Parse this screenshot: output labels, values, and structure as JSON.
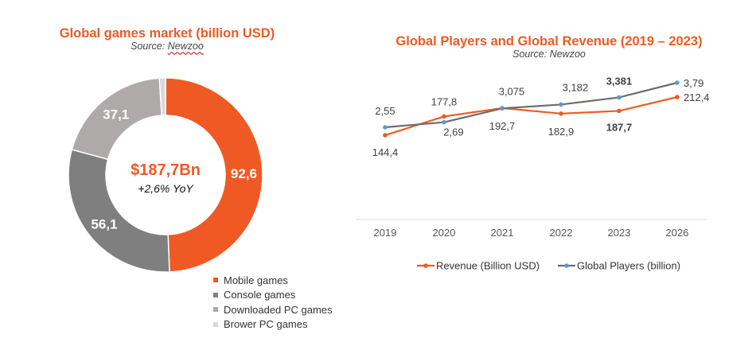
{
  "left": {
    "title": "Global games market (billion USD)",
    "subtitle_prefix": "Source: ",
    "subtitle_source": "Newzoo"
  },
  "right": {
    "title": "Global Players and Global Revenue (2019 – 2023)",
    "subtitle": "Source: Newzoo"
  },
  "chart_data": [
    {
      "type": "pie",
      "variant": "donut",
      "title": "Global games market (billion USD)",
      "subtitle": "Source: Newzoo",
      "center_value": "$187,7Bn",
      "center_note": "+2,6% YoY",
      "legend_position": "bottom-right",
      "slices": [
        {
          "name": "Mobile games",
          "value": 92.6,
          "label": "92,6",
          "color": "#ef5a24"
        },
        {
          "name": "Console games",
          "value": 56.1,
          "label": "56,1",
          "color": "#7f7f7f"
        },
        {
          "name": "Downloaded PC games",
          "value": 37.1,
          "label": "37,1",
          "color": "#aeaaaa"
        },
        {
          "name": "Brower PC games",
          "value": 1.9,
          "label": "",
          "color": "#d9d9d9"
        }
      ]
    },
    {
      "type": "line",
      "title": "Global Players and Global Revenue (2019 – 2023)",
      "subtitle": "Source: Newzoo",
      "categories": [
        "2019",
        "2020",
        "2021",
        "2022",
        "2023",
        "2026"
      ],
      "legend_position": "bottom",
      "series": [
        {
          "name": "Revenue (Billion USD)",
          "color": "#ef5a24",
          "values": [
            144.4,
            177.8,
            192.7,
            182.9,
            187.7,
            212.4
          ],
          "labels": [
            "144,4",
            "177,8",
            "192,7",
            "182,9",
            "187,7",
            "212,4"
          ],
          "bold": [
            false,
            false,
            false,
            false,
            true,
            false
          ]
        },
        {
          "name": "Global Players (billion)",
          "color": "#6d6d6d",
          "marker_color": "#5b9bd5",
          "values": [
            2.55,
            2.69,
            3.075,
            3.182,
            3.381,
            3.79
          ],
          "labels": [
            "2,55",
            "2,69",
            "3,075",
            "3,182",
            "3,381",
            "3,79"
          ],
          "bold": [
            false,
            false,
            false,
            false,
            true,
            false
          ]
        }
      ]
    }
  ]
}
